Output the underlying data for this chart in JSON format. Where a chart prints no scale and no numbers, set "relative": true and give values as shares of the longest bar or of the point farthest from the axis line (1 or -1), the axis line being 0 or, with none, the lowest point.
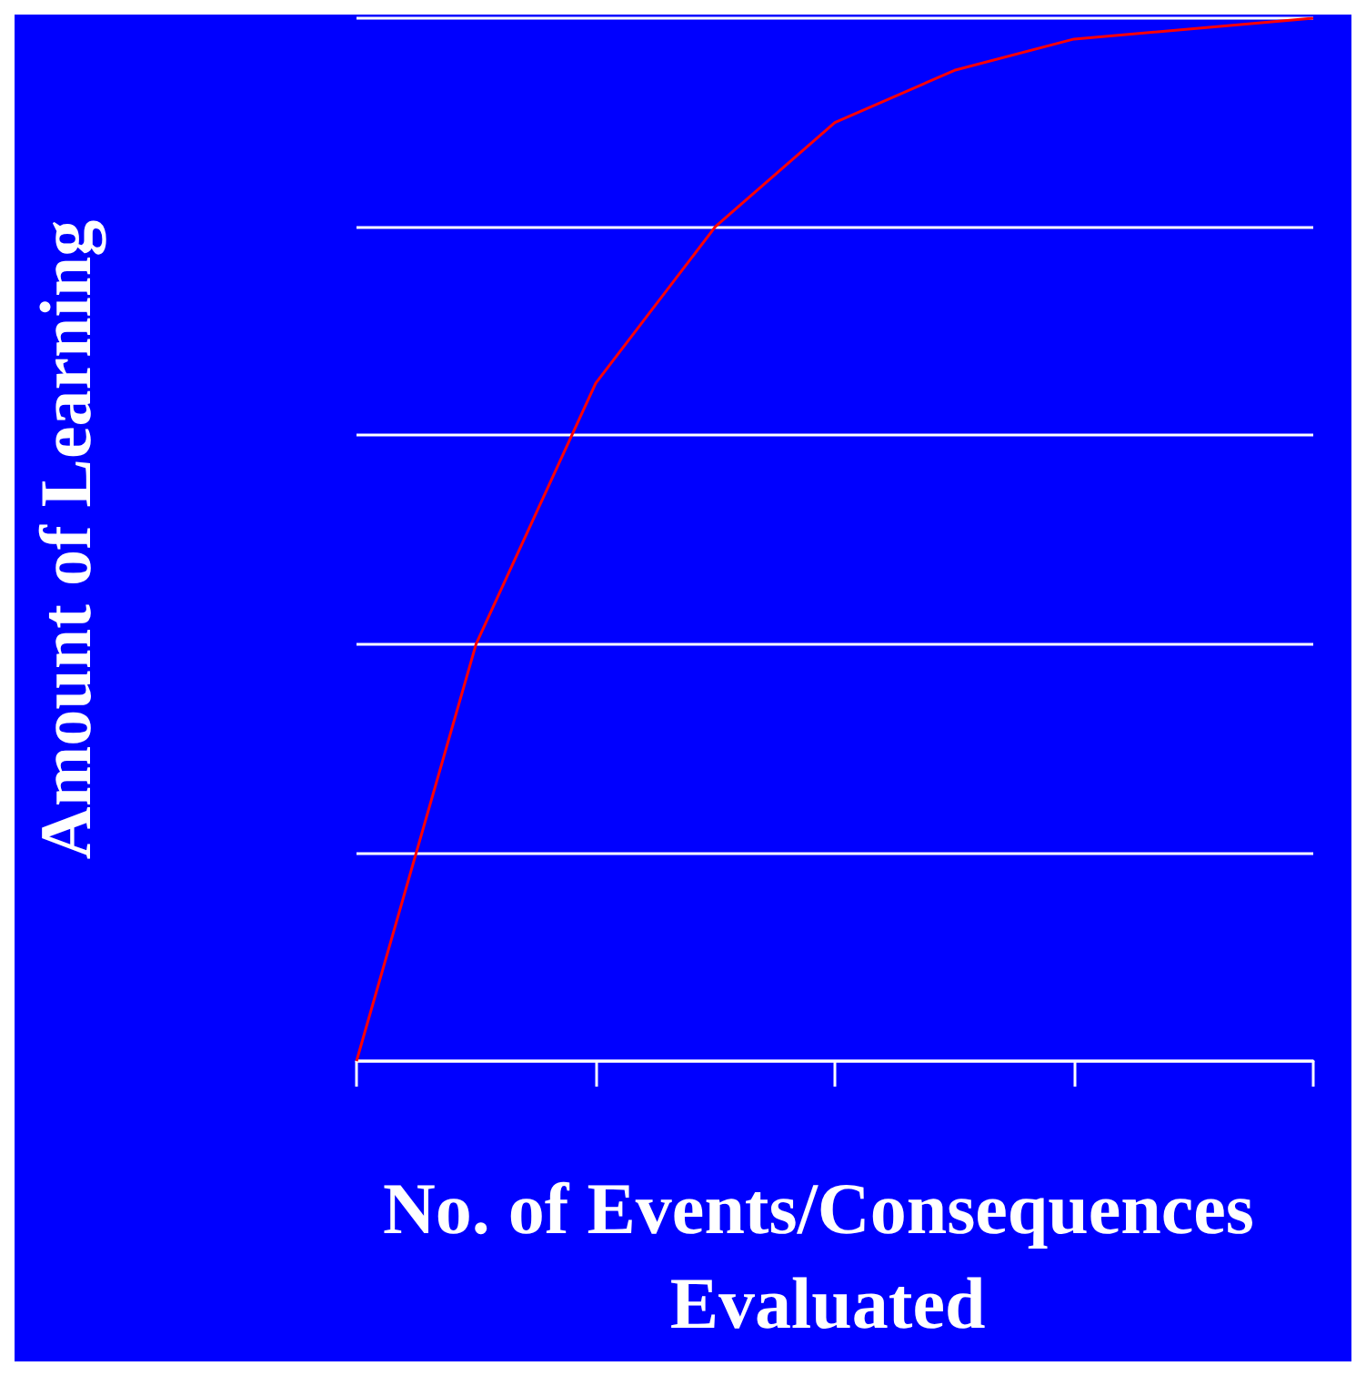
{
  "chart_data": {
    "type": "line",
    "xlabel": "No. of Events/Consequences Evaluated",
    "ylabel": "Amount of Learning",
    "categories": [
      null,
      null,
      null,
      null,
      null,
      null,
      null,
      null,
      null
    ],
    "series": [
      {
        "color": "#ff0000",
        "values": [
          0,
          0.4,
          0.65,
          0.8,
          0.9,
          0.95,
          0.98,
          0.99,
          1
        ]
      }
    ],
    "relative": true,
    "grid": "y",
    "marker": "none",
    "line_style": "solid"
  }
}
